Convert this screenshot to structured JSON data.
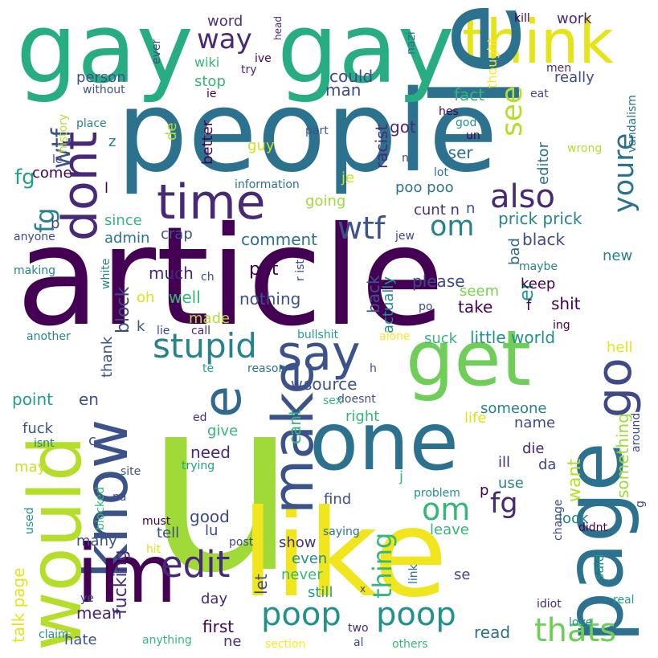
{
  "wordcloud": {
    "background": "#ffffff",
    "palette": [
      "#440154",
      "#3b528b",
      "#21918c",
      "#5ec962",
      "#fde725"
    ],
    "words": [
      {
        "text": "article",
        "color": "#440154"
      },
      {
        "text": "people",
        "color": "#2c728e"
      },
      {
        "text": "u",
        "color": "#a0da39"
      },
      {
        "text": "like",
        "color": "#f1e51d"
      },
      {
        "text": "gay",
        "color": "#27ad81"
      },
      {
        "text": "gay",
        "color": "#27ad81"
      },
      {
        "text": "one",
        "color": "#2c728e"
      },
      {
        "text": "page",
        "color": "#2c728e"
      },
      {
        "text": "get",
        "color": "#6ece58"
      },
      {
        "text": "would",
        "color": "#b5de2b"
      },
      {
        "text": "know",
        "color": "#3b528b"
      },
      {
        "text": "im",
        "color": "#440154"
      },
      {
        "text": "think",
        "color": "#e5e419"
      },
      {
        "text": "make",
        "color": "#3b528b"
      },
      {
        "text": "say",
        "color": "#3b528b"
      },
      {
        "text": "time",
        "color": "#482878"
      },
      {
        "text": "dont",
        "color": "#482878"
      },
      {
        "text": "go",
        "color": "#3e4989"
      },
      {
        "text": "e",
        "color": "#31688e"
      },
      {
        "text": "le",
        "color": "#2c728e"
      },
      {
        "text": "stupid",
        "color": "#26828e"
      },
      {
        "text": "edit",
        "color": "#482878"
      },
      {
        "text": "poop",
        "color": "#21918c"
      },
      {
        "text": "poop",
        "color": "#21918c"
      },
      {
        "text": "thats",
        "color": "#6ece58"
      },
      {
        "text": "also",
        "color": "#482878"
      },
      {
        "text": "youre",
        "color": "#2c728e"
      },
      {
        "text": "see",
        "color": "#b5de2b"
      },
      {
        "text": "wtf",
        "color": "#3b528b"
      },
      {
        "text": "om",
        "color": "#26828e"
      },
      {
        "text": "om",
        "color": "#35b779"
      },
      {
        "text": "fg",
        "color": "#26828e"
      },
      {
        "text": "fg",
        "color": "#482878"
      },
      {
        "text": "wtf",
        "color": "#3b528b"
      },
      {
        "text": "way",
        "color": "#482878"
      },
      {
        "text": "thing",
        "color": "#35b779"
      },
      {
        "text": "fg",
        "color": "#1fa187"
      },
      {
        "text": "er",
        "color": "#1fa187"
      },
      {
        "text": "want",
        "color": "#b5de2b"
      },
      {
        "text": "something",
        "color": "#a0da39"
      },
      {
        "text": "fucking",
        "color": "#482878"
      },
      {
        "text": "talk page",
        "color": "#e5e419"
      },
      {
        "text": "little world",
        "color": "#21918c"
      },
      {
        "text": "prick prick",
        "color": "#26828e"
      },
      {
        "text": "poo poo",
        "color": "#2c728e"
      },
      {
        "text": "cunt n",
        "color": "#46327e"
      },
      {
        "text": "nothing",
        "color": "#3b528b"
      },
      {
        "text": "source",
        "color": "#3b528b"
      },
      {
        "text": "racist",
        "color": "#482878"
      },
      {
        "text": "could",
        "color": "#3e4989"
      },
      {
        "text": "really",
        "color": "#3e4989"
      },
      {
        "text": "fact",
        "color": "#35b779"
      },
      {
        "text": "man",
        "color": "#3e4989"
      },
      {
        "text": "got",
        "color": "#482878"
      },
      {
        "text": "user",
        "color": "#2c728e"
      },
      {
        "text": "editor",
        "color": "#2c728e"
      },
      {
        "text": "going",
        "color": "#a0da39"
      },
      {
        "text": "je",
        "color": "#cde11d"
      },
      {
        "text": "much",
        "color": "#482878"
      },
      {
        "text": "well",
        "color": "#35b779"
      },
      {
        "text": "oh",
        "color": "#dde318"
      },
      {
        "text": "made",
        "color": "#b5de2b"
      },
      {
        "text": "put",
        "color": "#440154"
      },
      {
        "text": "comment",
        "color": "#2c728e"
      },
      {
        "text": "block",
        "color": "#3e4989"
      },
      {
        "text": "back",
        "color": "#3b528b"
      },
      {
        "text": "actually",
        "color": "#21918c"
      },
      {
        "text": "please",
        "color": "#3e4989"
      },
      {
        "text": "seem",
        "color": "#7ad151"
      },
      {
        "text": "take",
        "color": "#440154"
      },
      {
        "text": "keep",
        "color": "#440154"
      },
      {
        "text": "shit",
        "color": "#440154"
      },
      {
        "text": "black",
        "color": "#3e4989"
      },
      {
        "text": "new",
        "color": "#26828e"
      },
      {
        "text": "bad",
        "color": "#31688e"
      },
      {
        "text": "suck",
        "color": "#35b779"
      },
      {
        "text": "hell",
        "color": "#e5e419"
      },
      {
        "text": "thank",
        "color": "#3b528b"
      },
      {
        "text": "point",
        "color": "#1fa187"
      },
      {
        "text": "en",
        "color": "#3b528b"
      },
      {
        "text": "fuck",
        "color": "#3b528b"
      },
      {
        "text": "cant",
        "color": "#35b779"
      },
      {
        "text": "right",
        "color": "#35b779"
      },
      {
        "text": "life",
        "color": "#dde318"
      },
      {
        "text": "someone",
        "color": "#26828e"
      },
      {
        "text": "name",
        "color": "#3e4989"
      },
      {
        "text": "die",
        "color": "#482878"
      },
      {
        "text": "ill",
        "color": "#482878"
      },
      {
        "text": "da",
        "color": "#3e4989"
      },
      {
        "text": "give",
        "color": "#35b779"
      },
      {
        "text": "need",
        "color": "#482878"
      },
      {
        "text": "may",
        "color": "#cde11d"
      },
      {
        "text": "find",
        "color": "#3b528b"
      },
      {
        "text": "use",
        "color": "#26828e"
      },
      {
        "text": "good",
        "color": "#3e4989"
      },
      {
        "text": "tell",
        "color": "#3e4989"
      },
      {
        "text": "many",
        "color": "#3b528b"
      },
      {
        "text": "show",
        "color": "#46327e"
      },
      {
        "text": "even",
        "color": "#21918c"
      },
      {
        "text": "never",
        "color": "#35b779"
      },
      {
        "text": "still",
        "color": "#1fa187"
      },
      {
        "text": "let",
        "color": "#3e4989"
      },
      {
        "text": "day",
        "color": "#482878"
      },
      {
        "text": "mean",
        "color": "#482878"
      },
      {
        "text": "hate",
        "color": "#3b528b"
      },
      {
        "text": "first",
        "color": "#440154"
      },
      {
        "text": "ne",
        "color": "#46327e"
      },
      {
        "text": "read",
        "color": "#2c728e"
      },
      {
        "text": "look",
        "color": "#26828e"
      },
      {
        "text": "leave",
        "color": "#35b779"
      },
      {
        "text": "said",
        "color": "#21918c"
      },
      {
        "text": "se",
        "color": "#3e4989"
      },
      {
        "text": "word",
        "color": "#46327e"
      },
      {
        "text": "work",
        "color": "#482878"
      },
      {
        "text": "person",
        "color": "#3b528b"
      },
      {
        "text": "stop",
        "color": "#35b779"
      },
      {
        "text": "wiki",
        "color": "#35b779"
      },
      {
        "text": "better",
        "color": "#440154"
      },
      {
        "text": "guy",
        "color": "#cde11d"
      },
      {
        "text": "come",
        "color": "#440154"
      },
      {
        "text": "since",
        "color": "#35b779"
      },
      {
        "text": "admin",
        "color": "#2c728e"
      },
      {
        "text": "crap",
        "color": "#3b528b"
      },
      {
        "text": "information",
        "color": "#2c728e"
      },
      {
        "text": "history",
        "color": "#b5de2b"
      },
      {
        "text": "place",
        "color": "#26828e"
      },
      {
        "text": "without",
        "color": "#3b528b"
      },
      {
        "text": "head",
        "color": "#482878"
      },
      {
        "text": "ever",
        "color": "#3e4989"
      },
      {
        "text": "thought",
        "color": "#fde725"
      },
      {
        "text": "nazi",
        "color": "#31688e"
      },
      {
        "text": "kill",
        "color": "#440154"
      },
      {
        "text": "men",
        "color": "#482878"
      },
      {
        "text": "eat",
        "color": "#3e4989"
      },
      {
        "text": "vandalism",
        "color": "#2c728e"
      },
      {
        "text": "god",
        "color": "#21918c"
      },
      {
        "text": "un",
        "color": "#440154"
      },
      {
        "text": "hes",
        "color": "#440154"
      },
      {
        "text": "wrong",
        "color": "#b5de2b"
      },
      {
        "text": "lot",
        "color": "#2c728e"
      },
      {
        "text": "part",
        "color": "#3b528b"
      },
      {
        "text": "jew",
        "color": "#3e4989"
      },
      {
        "text": "maybe",
        "color": "#26828e"
      },
      {
        "text": "white",
        "color": "#26828e"
      },
      {
        "text": "making",
        "color": "#26828e"
      },
      {
        "text": "anyone",
        "color": "#3e4989"
      },
      {
        "text": "another",
        "color": "#26828e"
      },
      {
        "text": "lie",
        "color": "#3e4989"
      },
      {
        "text": "call",
        "color": "#482878"
      },
      {
        "text": "bullshit",
        "color": "#1fa187"
      },
      {
        "text": "alone",
        "color": "#fde725"
      },
      {
        "text": "ing",
        "color": "#440154"
      },
      {
        "text": "reason",
        "color": "#2c728e"
      },
      {
        "text": "doesnt",
        "color": "#3b528b"
      },
      {
        "text": "sex",
        "color": "#35b779"
      },
      {
        "text": "around",
        "color": "#3e4989"
      },
      {
        "text": "isnt",
        "color": "#26828e"
      },
      {
        "text": "site",
        "color": "#3b528b"
      },
      {
        "text": "trying",
        "color": "#1fa187"
      },
      {
        "text": "problem",
        "color": "#21918c"
      },
      {
        "text": "blocked",
        "color": "#35b779"
      },
      {
        "text": "used",
        "color": "#21918c"
      },
      {
        "text": "must",
        "color": "#440154"
      },
      {
        "text": "hit",
        "color": "#dde318"
      },
      {
        "text": "post",
        "color": "#3e4989"
      },
      {
        "text": "saying",
        "color": "#2c728e"
      },
      {
        "text": "link",
        "color": "#2c728e"
      },
      {
        "text": "change",
        "color": "#3e4989"
      },
      {
        "text": "didnt",
        "color": "#440154"
      },
      {
        "text": "idiot",
        "color": "#482878"
      },
      {
        "text": "real",
        "color": "#1fa187"
      },
      {
        "text": "love",
        "color": "#21918c"
      },
      {
        "text": "claim",
        "color": "#21918c"
      },
      {
        "text": "anything",
        "color": "#35b779"
      },
      {
        "text": "section",
        "color": "#fde725"
      },
      {
        "text": "al",
        "color": "#3e4989"
      },
      {
        "text": "two",
        "color": "#482878"
      },
      {
        "text": "others",
        "color": "#35b779"
      },
      {
        "text": "ive",
        "color": "#440154"
      },
      {
        "text": "try",
        "color": "#482878"
      },
      {
        "text": "ie",
        "color": "#440154"
      },
      {
        "text": "de",
        "color": "#b5de2b"
      },
      {
        "text": "z",
        "color": "#26828e"
      },
      {
        "text": "l",
        "color": "#440154"
      },
      {
        "text": "b",
        "color": "#3e4989"
      },
      {
        "text": "le",
        "color": "#3e4989"
      },
      {
        "text": "n",
        "color": "#3b528b"
      },
      {
        "text": "ch",
        "color": "#3e4989"
      },
      {
        "text": "r ist",
        "color": "#3e4989"
      },
      {
        "text": "po",
        "color": "#3e4989"
      },
      {
        "text": "f",
        "color": "#440154"
      },
      {
        "text": "k",
        "color": "#3b528b"
      },
      {
        "text": "v",
        "color": "#440154"
      },
      {
        "text": "te",
        "color": "#1fa187"
      },
      {
        "text": "h",
        "color": "#3e4989"
      },
      {
        "text": "w",
        "color": "#3e4989"
      },
      {
        "text": "ed",
        "color": "#482878"
      },
      {
        "text": "c",
        "color": "#3b528b"
      },
      {
        "text": "j",
        "color": "#35b779"
      },
      {
        "text": "p",
        "color": "#440154"
      },
      {
        "text": "na",
        "color": "#3e4989"
      },
      {
        "text": "n",
        "color": "#3e4989"
      },
      {
        "text": "lu",
        "color": "#3e4989"
      },
      {
        "text": "ye",
        "color": "#3e4989"
      },
      {
        "text": "x",
        "color": "#3e4989"
      },
      {
        "text": "g",
        "color": "#3e4989"
      }
    ]
  }
}
